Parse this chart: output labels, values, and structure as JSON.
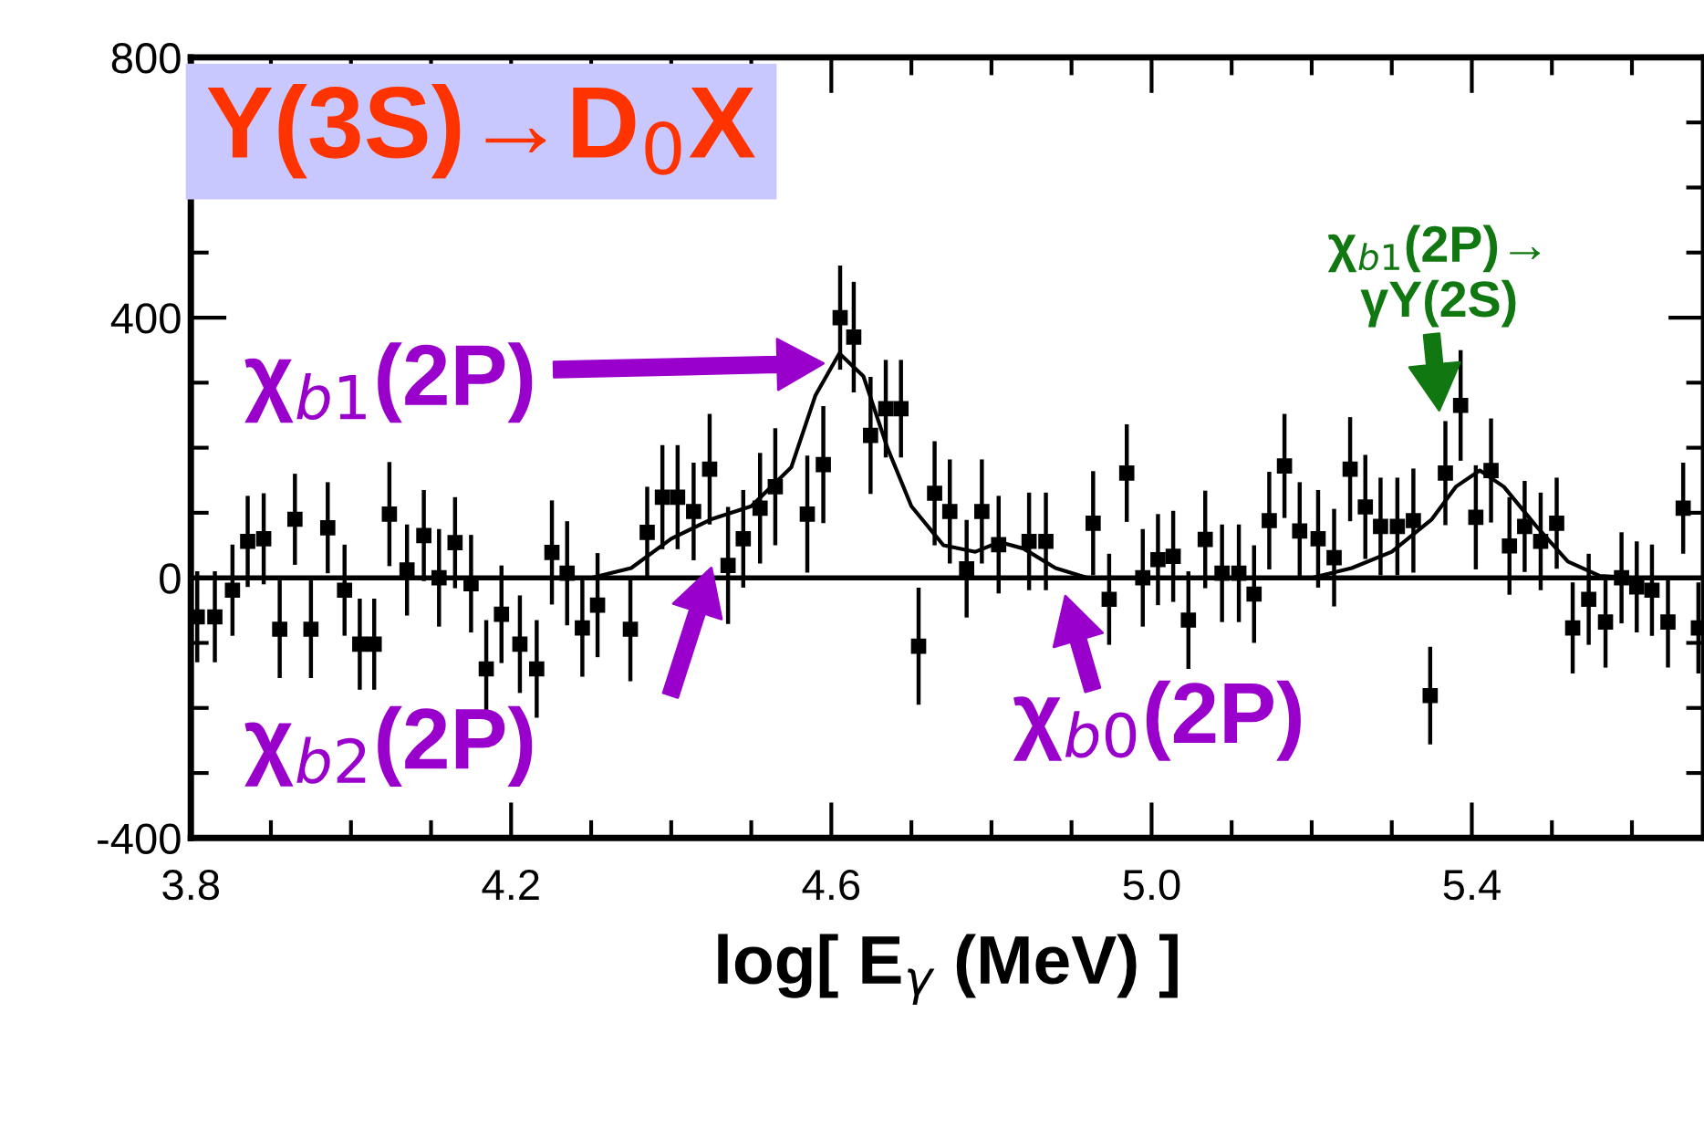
{
  "chart_data": {
    "type": "scatter",
    "title": "Υ(3S)→D$_{0}$X",
    "xlabel": "log[ E$_{γ}$ (MeV) ]",
    "xlim": [
      3.8,
      5.69
    ],
    "ylim": [
      -400,
      800
    ],
    "xticks": [
      3.8,
      4.2,
      4.6,
      {
        "value": 5.0,
        "label": "5.0"
      },
      5.4
    ],
    "yticks": [
      -400,
      0,
      400,
      800
    ],
    "marker": "square",
    "grid": false,
    "legend": false,
    "ref_lines": [
      {
        "axis": "y",
        "value": 0,
        "label": null,
        "color": "#000000",
        "line_style": "solid"
      }
    ],
    "series": [
      {
        "color": "#000000",
        "x": [
          3.808,
          3.83,
          3.852,
          3.871,
          3.891,
          3.911,
          3.93,
          3.95,
          3.971,
          3.992,
          4.011,
          4.029,
          4.048,
          4.07,
          4.091,
          4.11,
          4.13,
          4.15,
          4.169,
          4.188,
          4.211,
          4.232,
          4.251,
          4.27,
          4.289,
          4.308,
          4.349,
          4.37,
          4.389,
          4.408,
          4.428,
          4.448,
          4.471,
          4.49,
          4.511,
          4.53,
          4.57,
          4.59,
          4.611,
          4.628,
          4.649,
          4.668,
          4.687,
          4.709,
          4.729,
          4.748,
          4.769,
          4.788,
          4.809,
          4.847,
          4.868,
          4.927,
          4.947,
          4.969,
          4.989,
          5.008,
          5.027,
          5.046,
          5.067,
          5.088,
          5.109,
          5.128,
          5.147,
          5.166,
          5.185,
          5.208,
          5.228,
          5.248,
          5.267,
          5.286,
          5.307,
          5.327,
          5.348,
          5.367,
          5.386,
          5.405,
          5.424,
          5.447,
          5.466,
          5.486,
          5.506,
          5.526,
          5.546,
          5.567,
          5.587,
          5.606,
          5.625,
          5.645,
          5.664,
          5.683
        ],
        "values": [
          -60,
          -60,
          -19,
          56,
          60,
          -79,
          90,
          -79,
          77,
          -19,
          -102,
          -102,
          98,
          12,
          65,
          0,
          54,
          -9,
          -140,
          -56,
          -102,
          -140,
          39,
          7,
          -77,
          -42,
          -79,
          70,
          124,
          124,
          102,
          167,
          19,
          60,
          107,
          140,
          98,
          174,
          400,
          370,
          219,
          260,
          260,
          -105,
          130,
          102,
          14,
          102,
          51,
          56,
          56,
          84,
          -33,
          161,
          0,
          28,
          33,
          -65,
          59,
          7,
          7,
          -25,
          88,
          172,
          72,
          60,
          31,
          167,
          109,
          79,
          79,
          88,
          -181,
          161,
          265,
          93,
          165,
          49,
          79,
          56,
          84,
          -77,
          -33,
          -68,
          0,
          -14,
          -19,
          -68,
          107,
          -77
        ],
        "errors": [
          70,
          70,
          70,
          70,
          70,
          75,
          70,
          75,
          70,
          70,
          70,
          70,
          80,
          70,
          70,
          75,
          70,
          75,
          75,
          75,
          75,
          75,
          80,
          80,
          75,
          80,
          80,
          70,
          80,
          80,
          75,
          85,
          90,
          75,
          85,
          90,
          90,
          90,
          80,
          85,
          90,
          75,
          75,
          90,
          80,
          80,
          75,
          80,
          75,
          75,
          75,
          80,
          70,
          75,
          75,
          70,
          70,
          75,
          75,
          75,
          75,
          75,
          75,
          80,
          75,
          75,
          75,
          80,
          80,
          75,
          75,
          80,
          75,
          80,
          85,
          80,
          80,
          75,
          70,
          75,
          70,
          70,
          70,
          70,
          70,
          70,
          70,
          70,
          70,
          70
        ]
      },
      {
        "type": "line",
        "color": "#000000",
        "marker": "none",
        "x": [
          3.8,
          4.3,
          4.35,
          4.4,
          4.45,
          4.5,
          4.55,
          4.58,
          4.61,
          4.64,
          4.67,
          4.7,
          4.74,
          4.78,
          4.81,
          4.84,
          4.88,
          4.92,
          5.2,
          5.25,
          5.3,
          5.35,
          5.38,
          5.41,
          5.44,
          5.48,
          5.52,
          5.56,
          5.6,
          5.69
        ],
        "values": [
          0,
          0,
          15,
          60,
          90,
          110,
          170,
          280,
          345,
          310,
          200,
          110,
          50,
          40,
          55,
          45,
          15,
          0,
          0,
          15,
          40,
          90,
          140,
          165,
          140,
          80,
          25,
          3,
          0,
          0
        ]
      }
    ],
    "annotations": [
      "χ$_{b1}$(2P)",
      "χ$_{b2}$(2P)",
      "χ$_{b0}$(2P)",
      "χ$_{b1}$(2P)→\nγΥ(2S)"
    ]
  }
}
